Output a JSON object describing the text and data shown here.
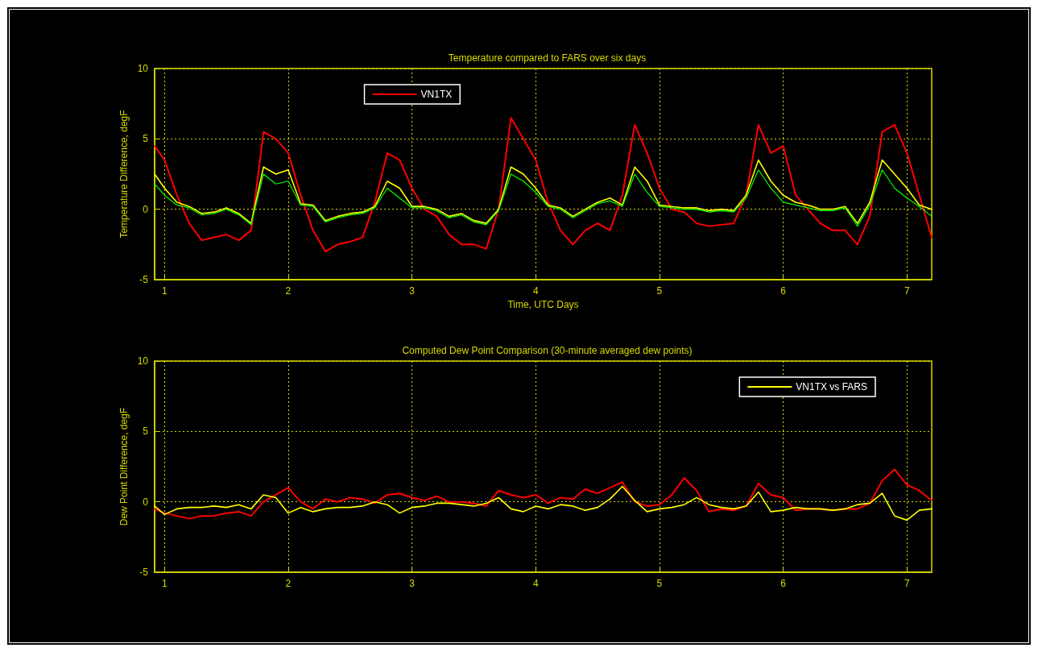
{
  "chart_data": [
    {
      "type": "line",
      "title": "Temperature compared to FARS over six days",
      "xlabel": "Time, UTC Days",
      "ylabel": "Temperature Difference, degF",
      "xlim": [
        0.92,
        7.2
      ],
      "xticks": [
        1,
        2,
        3,
        4,
        5,
        6,
        7
      ],
      "ylim": [
        -5,
        10
      ],
      "yticks": [
        -5,
        0,
        5,
        10
      ],
      "grid": true,
      "legend": "top",
      "marker": "none",
      "line_style": "solid",
      "x": [
        0.92,
        1.0,
        1.1,
        1.2,
        1.3,
        1.4,
        1.5,
        1.6,
        1.7,
        1.8,
        1.9,
        2.0,
        2.1,
        2.2,
        2.3,
        2.4,
        2.5,
        2.6,
        2.7,
        2.8,
        2.9,
        3.0,
        3.1,
        3.2,
        3.3,
        3.4,
        3.5,
        3.6,
        3.7,
        3.8,
        3.9,
        4.0,
        4.1,
        4.2,
        4.3,
        4.4,
        4.5,
        4.6,
        4.7,
        4.8,
        4.9,
        5.0,
        5.1,
        5.2,
        5.3,
        5.4,
        5.5,
        5.6,
        5.7,
        5.8,
        5.9,
        6.0,
        6.1,
        6.2,
        6.3,
        6.4,
        6.5,
        6.6,
        6.7,
        6.8,
        6.9,
        7.0,
        7.1,
        7.2
      ],
      "series": [
        {
          "name": "VN1TX",
          "color": "#ff0000",
          "values": [
            4.5,
            3.5,
            1,
            -1,
            -2.2,
            -2,
            -1.8,
            -2.2,
            -1.5,
            5.5,
            5,
            4,
            1,
            -1.5,
            -3,
            -2.5,
            -2.3,
            -2,
            0.5,
            4,
            3.5,
            1.5,
            0,
            -0.5,
            -1.8,
            -2.5,
            -2.5,
            -2.8,
            0,
            6.5,
            5,
            3.5,
            0.5,
            -1.5,
            -2.5,
            -1.5,
            -1,
            -1.5,
            1,
            6,
            4,
            1.5,
            0,
            -0.2,
            -1,
            -1.2,
            -1.1,
            -1,
            1,
            6,
            4,
            4.5,
            1,
            0,
            -1,
            -1.5,
            -1.5,
            -2.5,
            -0.5,
            5.5,
            6,
            4,
            1,
            -2
          ]
        },
        {
          "color": "#ffff00",
          "values": [
            2.5,
            1.5,
            0.5,
            0.2,
            -0.3,
            -0.2,
            0.1,
            -0.3,
            -1,
            3,
            2.5,
            2.8,
            0.4,
            0.3,
            -0.8,
            -0.5,
            -0.3,
            -0.2,
            0.2,
            2,
            1.5,
            0.2,
            0.2,
            0,
            -0.5,
            -0.3,
            -0.8,
            -1,
            0,
            3,
            2.5,
            1.5,
            0.3,
            0.1,
            -0.5,
            0,
            0.5,
            0.8,
            0.3,
            3,
            2,
            0.3,
            0.2,
            0.1,
            0.1,
            -0.1,
            0,
            -0.1,
            1,
            3.5,
            2,
            1,
            0.5,
            0.3,
            0,
            0,
            0.2,
            -1,
            0.5,
            3.5,
            2.5,
            1.5,
            0.3,
            0
          ]
        },
        {
          "color": "#00ff00",
          "values": [
            1.8,
            1,
            0.3,
            0.1,
            -0.4,
            -0.3,
            0,
            -0.4,
            -1.1,
            2.5,
            1.8,
            2,
            0.3,
            0.2,
            -0.9,
            -0.6,
            -0.4,
            -0.3,
            0.1,
            1.5,
            0.8,
            0.1,
            0.1,
            -0.1,
            -0.6,
            -0.4,
            -0.9,
            -1.1,
            -0.1,
            2.5,
            2,
            1.2,
            0.2,
            0,
            -0.6,
            -0.1,
            0.4,
            0.6,
            0.2,
            2.5,
            1.2,
            0.2,
            0.1,
            0,
            0,
            -0.2,
            -0.1,
            -0.2,
            0.8,
            2.8,
            1.5,
            0.5,
            0.3,
            0.1,
            -0.1,
            -0.1,
            0.1,
            -1.2,
            0.3,
            2.8,
            1.5,
            0.8,
            0.2,
            -0.5
          ]
        }
      ]
    },
    {
      "type": "line",
      "title": "Computed Dew Point Comparison (30-minute averaged dew points)",
      "ylabel": "Dew Point Difference, degF",
      "xlim": [
        0.92,
        7.2
      ],
      "xticks": [
        1,
        2,
        3,
        4,
        5,
        6,
        7
      ],
      "ylim": [
        -5,
        10
      ],
      "yticks": [
        -5,
        0,
        5,
        10
      ],
      "grid": true,
      "legend": "top right",
      "marker": "none",
      "line_style": "solid",
      "x": [
        0.92,
        1.0,
        1.1,
        1.2,
        1.3,
        1.4,
        1.5,
        1.6,
        1.7,
        1.8,
        1.9,
        2.0,
        2.1,
        2.2,
        2.3,
        2.4,
        2.5,
        2.6,
        2.7,
        2.8,
        2.9,
        3.0,
        3.1,
        3.2,
        3.3,
        3.4,
        3.5,
        3.6,
        3.7,
        3.8,
        3.9,
        4.0,
        4.1,
        4.2,
        4.3,
        4.4,
        4.5,
        4.6,
        4.7,
        4.8,
        4.9,
        5.0,
        5.1,
        5.2,
        5.3,
        5.4,
        5.5,
        5.6,
        5.7,
        5.8,
        5.9,
        6.0,
        6.1,
        6.2,
        6.3,
        6.4,
        6.5,
        6.6,
        6.7,
        6.8,
        6.9,
        7.0,
        7.1,
        7.2
      ],
      "series": [
        {
          "color": "#ff0000",
          "values": [
            -0.5,
            -0.8,
            -1,
            -1.2,
            -1,
            -1,
            -0.8,
            -0.7,
            -1,
            0,
            0.5,
            1,
            0,
            -0.5,
            0.2,
            0,
            0.3,
            0.2,
            -0.1,
            0.5,
            0.6,
            0.3,
            0.1,
            0.4,
            0,
            0,
            -0.1,
            -0.3,
            0.8,
            0.5,
            0.3,
            0.5,
            -0.1,
            0.3,
            0.2,
            0.9,
            0.6,
            1,
            1.4,
            0,
            -0.3,
            -0.2,
            0.5,
            1.7,
            0.8,
            -0.7,
            -0.5,
            -0.6,
            -0.3,
            1.3,
            0.5,
            0.3,
            -0.6,
            -0.5,
            -0.5,
            -0.6,
            -0.5,
            -0.5,
            -0.1,
            1.5,
            2.3,
            1.2,
            0.8,
            0.1
          ]
        },
        {
          "name": "VN1TX vs FARS",
          "color": "#ffff00",
          "values": [
            -0.3,
            -0.9,
            -0.5,
            -0.4,
            -0.4,
            -0.3,
            -0.4,
            -0.2,
            -0.5,
            0.5,
            0.3,
            -0.8,
            -0.4,
            -0.7,
            -0.5,
            -0.4,
            -0.4,
            -0.3,
            0,
            -0.2,
            -0.8,
            -0.4,
            -0.3,
            -0.1,
            -0.1,
            -0.2,
            -0.3,
            -0.1,
            0.3,
            -0.5,
            -0.7,
            -0.3,
            -0.5,
            -0.2,
            -0.3,
            -0.6,
            -0.4,
            0.2,
            1.1,
            0.1,
            -0.7,
            -0.5,
            -0.4,
            -0.2,
            0.3,
            -0.2,
            -0.4,
            -0.5,
            -0.3,
            0.7,
            -0.7,
            -0.6,
            -0.4,
            -0.5,
            -0.5,
            -0.6,
            -0.5,
            -0.2,
            -0.1,
            0.6,
            -1,
            -1.3,
            -0.6,
            -0.5
          ]
        }
      ]
    }
  ]
}
